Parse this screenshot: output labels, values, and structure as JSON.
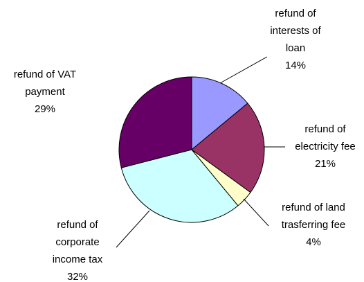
{
  "chart_data": {
    "type": "pie",
    "categories": [
      "refund of\ninterests of\nloan",
      "refund of\nelectricity fee",
      "refund of land\ntrasferring fee",
      "refund of\ncorporate\nincome tax",
      "refund of VAT\npayment"
    ],
    "values": [
      14,
      21,
      4,
      32,
      29
    ],
    "value_labels": [
      "14%",
      "21%",
      "4%",
      "32%",
      "29%"
    ],
    "colors": [
      "#9999ff",
      "#993366",
      "#ffffcc",
      "#ccffff",
      "#660066"
    ]
  }
}
